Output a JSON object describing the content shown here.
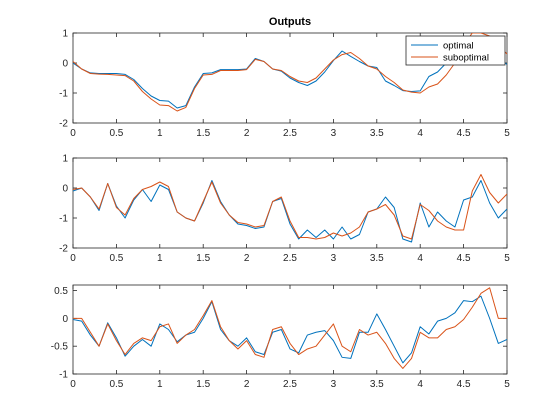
{
  "colors": {
    "optimal": "#0072BD",
    "suboptimal": "#D95319",
    "axis": "#262626",
    "background": "#ffffff"
  },
  "chart_data": [
    {
      "type": "line",
      "title": "Outputs",
      "xlabel": "",
      "ylabel": "",
      "xlim": [
        0,
        5
      ],
      "ylim": [
        -2,
        1
      ],
      "xticks": [
        "0",
        "0.5",
        "1",
        "1.5",
        "2",
        "2.5",
        "3",
        "3.5",
        "4",
        "4.5",
        "5"
      ],
      "yticks": [
        "-2",
        "-1",
        "0",
        "1"
      ],
      "grid": false,
      "legend": {
        "placement": "top-right",
        "entries": [
          "optimal",
          "suboptimal"
        ]
      },
      "x": [
        0,
        0.1,
        0.2,
        0.3,
        0.4,
        0.5,
        0.6,
        0.7,
        0.8,
        0.9,
        1.0,
        1.1,
        1.2,
        1.3,
        1.4,
        1.5,
        1.6,
        1.7,
        1.8,
        1.9,
        2.0,
        2.1,
        2.2,
        2.3,
        2.4,
        2.5,
        2.6,
        2.7,
        2.8,
        2.9,
        3.0,
        3.1,
        3.2,
        3.3,
        3.4,
        3.5,
        3.6,
        3.7,
        3.8,
        3.9,
        4.0,
        4.1,
        4.2,
        4.3,
        4.4,
        4.5,
        4.6,
        4.7,
        4.8,
        4.9,
        5.0
      ],
      "series": [
        {
          "name": "optimal",
          "values": [
            0.0,
            -0.2,
            -0.33,
            -0.35,
            -0.35,
            -0.35,
            -0.38,
            -0.55,
            -0.85,
            -1.1,
            -1.25,
            -1.27,
            -1.5,
            -1.42,
            -0.8,
            -0.35,
            -0.33,
            -0.22,
            -0.22,
            -0.22,
            -0.2,
            0.15,
            0.05,
            -0.2,
            -0.27,
            -0.5,
            -0.65,
            -0.75,
            -0.6,
            -0.3,
            0.08,
            0.4,
            0.22,
            0.05,
            -0.1,
            -0.15,
            -0.6,
            -0.75,
            -0.92,
            -0.95,
            -0.93,
            -0.45,
            -0.3,
            0.0,
            0.3,
            0.6,
            0.82,
            0.75,
            0.5,
            0.2,
            -0.05
          ]
        },
        {
          "name": "suboptimal",
          "values": [
            0.05,
            -0.2,
            -0.35,
            -0.37,
            -0.38,
            -0.4,
            -0.42,
            -0.6,
            -0.95,
            -1.2,
            -1.4,
            -1.42,
            -1.6,
            -1.48,
            -0.85,
            -0.4,
            -0.38,
            -0.25,
            -0.25,
            -0.25,
            -0.22,
            0.12,
            0.05,
            -0.2,
            -0.25,
            -0.45,
            -0.6,
            -0.65,
            -0.5,
            -0.2,
            0.1,
            0.28,
            0.35,
            0.15,
            -0.1,
            -0.2,
            -0.45,
            -0.65,
            -0.9,
            -0.97,
            -1.0,
            -0.8,
            -0.7,
            -0.4,
            0.0,
            0.6,
            1.0,
            1.0,
            0.9,
            0.6,
            0.3
          ]
        }
      ]
    },
    {
      "type": "line",
      "title": "",
      "xlabel": "",
      "ylabel": "",
      "xlim": [
        0,
        5
      ],
      "ylim": [
        -2,
        1
      ],
      "xticks": [
        "0",
        "0.5",
        "1",
        "1.5",
        "2",
        "2.5",
        "3",
        "3.5",
        "4",
        "4.5",
        "5"
      ],
      "yticks": [
        "-2",
        "-1",
        "0",
        "1"
      ],
      "grid": false,
      "x": [
        0,
        0.1,
        0.2,
        0.3,
        0.4,
        0.5,
        0.6,
        0.7,
        0.8,
        0.9,
        1.0,
        1.1,
        1.2,
        1.3,
        1.4,
        1.5,
        1.6,
        1.7,
        1.8,
        1.9,
        2.0,
        2.1,
        2.2,
        2.3,
        2.4,
        2.5,
        2.6,
        2.7,
        2.8,
        2.9,
        3.0,
        3.1,
        3.2,
        3.3,
        3.4,
        3.5,
        3.6,
        3.7,
        3.8,
        3.9,
        4.0,
        4.1,
        4.2,
        4.3,
        4.4,
        4.5,
        4.6,
        4.7,
        4.8,
        4.9,
        5.0
      ],
      "series": [
        {
          "name": "optimal",
          "values": [
            -0.1,
            0.0,
            -0.3,
            -0.75,
            0.15,
            -0.6,
            -1.0,
            -0.4,
            -0.05,
            -0.45,
            0.1,
            -0.05,
            -0.8,
            -1.0,
            -1.1,
            -0.5,
            0.25,
            -0.45,
            -0.9,
            -1.2,
            -1.25,
            -1.35,
            -1.3,
            -0.45,
            -0.35,
            -1.2,
            -1.7,
            -1.4,
            -1.65,
            -1.4,
            -1.7,
            -1.3,
            -1.7,
            -1.55,
            -0.8,
            -0.7,
            -0.3,
            -0.65,
            -1.7,
            -1.8,
            -0.5,
            -1.3,
            -0.8,
            -1.1,
            -1.3,
            -0.4,
            -0.3,
            0.25,
            -0.5,
            -1.0,
            -0.7
          ]
        },
        {
          "name": "suboptimal",
          "values": [
            -0.05,
            0.0,
            -0.3,
            -0.7,
            0.15,
            -0.65,
            -0.9,
            -0.35,
            -0.05,
            0.05,
            0.2,
            0.05,
            -0.8,
            -1.0,
            -1.1,
            -0.45,
            0.2,
            -0.5,
            -0.9,
            -1.15,
            -1.2,
            -1.3,
            -1.25,
            -0.45,
            -0.3,
            -1.1,
            -1.65,
            -1.65,
            -1.7,
            -1.65,
            -1.5,
            -1.6,
            -1.5,
            -1.3,
            -0.8,
            -0.7,
            -0.55,
            -0.9,
            -1.6,
            -1.7,
            -0.55,
            -0.75,
            -1.1,
            -1.3,
            -1.4,
            -1.4,
            -0.1,
            0.45,
            -0.15,
            -0.5,
            -0.2
          ]
        }
      ]
    },
    {
      "type": "line",
      "title": "",
      "xlabel": "",
      "ylabel": "",
      "xlim": [
        0,
        5
      ],
      "ylim": [
        -1,
        0.6
      ],
      "xticks": [
        "0",
        "0.5",
        "1",
        "1.5",
        "2",
        "2.5",
        "3",
        "3.5",
        "4",
        "4.5",
        "5"
      ],
      "yticks": [
        "-1",
        "-0.5",
        "0",
        "0.5"
      ],
      "grid": false,
      "x": [
        0,
        0.1,
        0.2,
        0.3,
        0.4,
        0.5,
        0.6,
        0.7,
        0.8,
        0.9,
        1.0,
        1.1,
        1.2,
        1.3,
        1.4,
        1.5,
        1.6,
        1.7,
        1.8,
        1.9,
        2.0,
        2.1,
        2.2,
        2.3,
        2.4,
        2.5,
        2.6,
        2.7,
        2.8,
        2.9,
        3.0,
        3.1,
        3.2,
        3.3,
        3.4,
        3.5,
        3.6,
        3.7,
        3.8,
        3.9,
        4.0,
        4.1,
        4.2,
        4.3,
        4.4,
        4.5,
        4.6,
        4.7,
        4.8,
        4.9,
        5.0
      ],
      "series": [
        {
          "name": "optimal",
          "values": [
            -0.02,
            -0.05,
            -0.3,
            -0.5,
            -0.08,
            -0.35,
            -0.68,
            -0.5,
            -0.38,
            -0.5,
            -0.1,
            -0.2,
            -0.42,
            -0.3,
            -0.25,
            0.0,
            0.3,
            -0.2,
            -0.4,
            -0.5,
            -0.35,
            -0.6,
            -0.65,
            -0.25,
            -0.2,
            -0.55,
            -0.62,
            -0.3,
            -0.25,
            -0.22,
            -0.4,
            -0.7,
            -0.72,
            -0.25,
            -0.25,
            0.08,
            -0.2,
            -0.5,
            -0.8,
            -0.62,
            -0.15,
            -0.28,
            -0.05,
            0.0,
            0.1,
            0.32,
            0.3,
            0.4,
            0.0,
            -0.45,
            -0.38
          ]
        },
        {
          "name": "suboptimal",
          "values": [
            0.0,
            0.0,
            -0.25,
            -0.5,
            -0.1,
            -0.4,
            -0.65,
            -0.45,
            -0.35,
            -0.4,
            -0.15,
            -0.1,
            -0.45,
            -0.3,
            -0.2,
            0.05,
            0.32,
            -0.15,
            -0.4,
            -0.55,
            -0.4,
            -0.65,
            -0.7,
            -0.2,
            -0.15,
            -0.45,
            -0.65,
            -0.55,
            -0.5,
            -0.3,
            -0.1,
            -0.5,
            -0.6,
            -0.2,
            -0.3,
            -0.25,
            -0.45,
            -0.72,
            -0.9,
            -0.72,
            -0.25,
            -0.35,
            -0.35,
            -0.2,
            -0.15,
            -0.02,
            0.2,
            0.45,
            0.55,
            0.0,
            0.0
          ]
        }
      ]
    }
  ]
}
